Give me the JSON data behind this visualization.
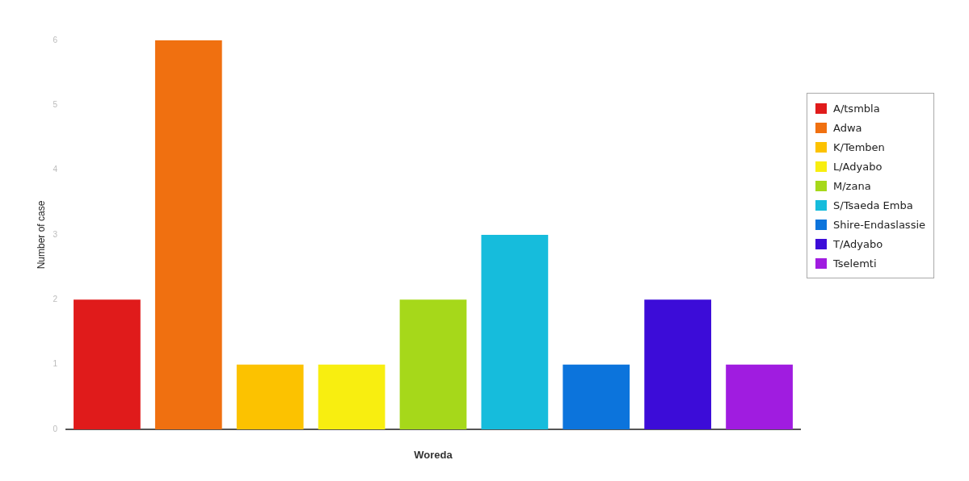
{
  "chart_data": {
    "type": "bar",
    "xlabel": "Woreda",
    "ylabel": "Number of case",
    "categories": [
      null,
      null,
      null,
      null,
      null,
      null,
      null,
      null,
      null
    ],
    "series": [
      {
        "name": "A/tsmbla",
        "color": "#e01b1b",
        "values": [
          2,
          null,
          null,
          null,
          null,
          null,
          null,
          null,
          null
        ]
      },
      {
        "name": "Adwa",
        "color": "#f07010",
        "values": [
          null,
          6,
          null,
          null,
          null,
          null,
          null,
          null,
          null
        ]
      },
      {
        "name": "K/Temben",
        "color": "#fcc200",
        "values": [
          null,
          null,
          1,
          null,
          null,
          null,
          null,
          null,
          null
        ]
      },
      {
        "name": "L/Adyabo",
        "color": "#f8ee10",
        "values": [
          null,
          null,
          null,
          1,
          null,
          null,
          null,
          null,
          null
        ]
      },
      {
        "name": "M/zana",
        "color": "#a6d81a",
        "values": [
          null,
          null,
          null,
          null,
          2,
          null,
          null,
          null,
          null
        ]
      },
      {
        "name": "S/Tsaeda Emba",
        "color": "#16bcdc",
        "values": [
          null,
          null,
          null,
          null,
          null,
          3,
          null,
          null,
          null
        ]
      },
      {
        "name": "Shire-Endaslassie",
        "color": "#0c74dc",
        "values": [
          null,
          null,
          null,
          null,
          null,
          null,
          1,
          null,
          null
        ]
      },
      {
        "name": "T/Adyabo",
        "color": "#3c0cd8",
        "values": [
          null,
          null,
          null,
          null,
          null,
          null,
          null,
          2,
          null
        ]
      },
      {
        "name": "Tselemti",
        "color": "#a01ce0",
        "values": [
          null,
          null,
          null,
          null,
          null,
          null,
          null,
          null,
          1
        ]
      }
    ],
    "ylim": [
      0,
      6
    ],
    "yticks": [
      0,
      1,
      2,
      3,
      4,
      5,
      6
    ],
    "grid": false,
    "legend": "right"
  }
}
